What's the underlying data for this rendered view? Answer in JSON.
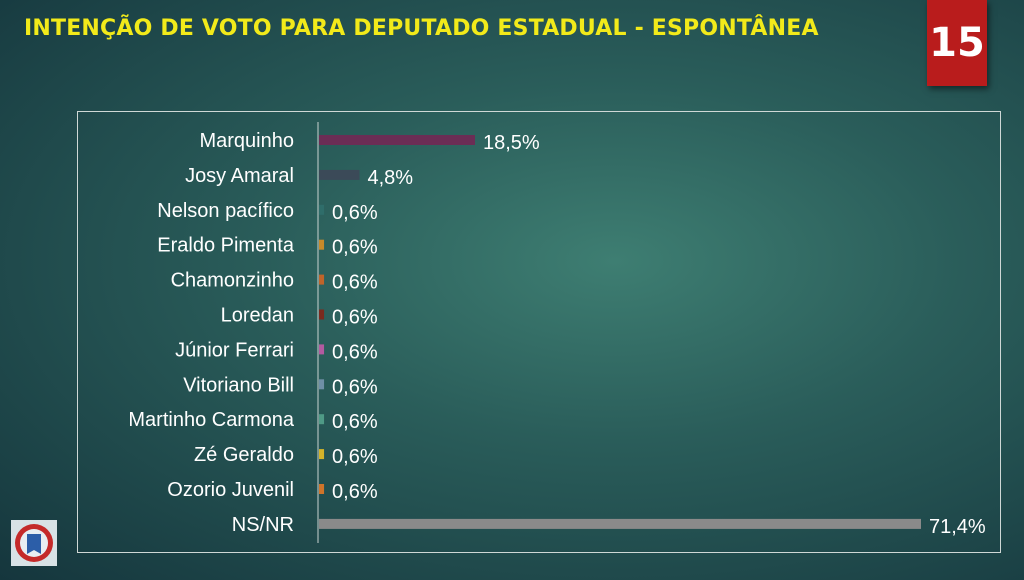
{
  "header": {
    "title": "INTENÇÃO DE VOTO PARA DEPUTADO ESTADUAL - ESPONTÂNEA",
    "page_number": "15"
  },
  "chart_data": {
    "type": "bar",
    "orientation": "horizontal",
    "categories": [
      "Marquinho",
      "Josy Amaral",
      "Nelson pacífico",
      "Eraldo Pimenta",
      "Chamonzinho",
      "Loredan",
      "Júnior Ferrari",
      "Vitoriano Bill",
      "Martinho Carmona",
      "Zé Geraldo",
      "Ozorio Juvenil",
      "NS/NR"
    ],
    "values": [
      18.5,
      4.8,
      0.6,
      0.6,
      0.6,
      0.6,
      0.6,
      0.6,
      0.6,
      0.6,
      0.6,
      71.4
    ],
    "value_labels": [
      "18,5%",
      "4,8%",
      "0,6%",
      "0,6%",
      "0,6%",
      "0,6%",
      "0,6%",
      "0,6%",
      "0,6%",
      "0,6%",
      "0,6%",
      "71,4%"
    ],
    "bar_colors": [
      "#6b2d55",
      "#3b4a58",
      "#2f6d6a",
      "#c98a2a",
      "#c0642a",
      "#7a2a1e",
      "#b35aa0",
      "#6f8fa6",
      "#4f9a86",
      "#d4b32a",
      "#d0742a",
      "#8a8a8a"
    ],
    "xlim": [
      0,
      72
    ]
  }
}
